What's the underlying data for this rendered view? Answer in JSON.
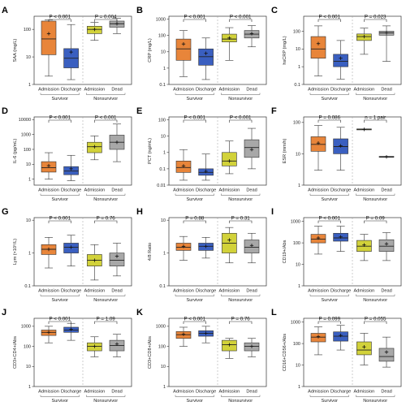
{
  "colors": {
    "admission": "#e8853a",
    "discharge": "#3a5fc0",
    "nonsurv_admission": "#d2d23a",
    "dead": "#a8a8a8"
  },
  "group_labels": [
    "Survivor",
    "Nonsurvivor"
  ],
  "category_labels": [
    "Admission",
    "Discharge",
    "Admission",
    "Dead"
  ],
  "chart_data": [
    {
      "type": "box",
      "panel": "A",
      "ylabel": "SAA (mg/L)",
      "scale": "log",
      "ylim": [
        1,
        300
      ],
      "yticks": [
        1,
        10,
        100
      ],
      "ytick_labels": [
        "1",
        "10",
        "100"
      ],
      "categories": [
        "Admission",
        "Discharge",
        "Admission",
        "Dead"
      ],
      "boxes": [
        {
          "whisker_low": 2,
          "q1": 12,
          "median": 45,
          "q3": 200,
          "whisker_high": 220,
          "mean": 70
        },
        {
          "whisker_low": 1.5,
          "q1": 4,
          "median": 9,
          "q3": 20,
          "whisker_high": 150,
          "mean": 15
        },
        {
          "whisker_low": 40,
          "q1": 70,
          "median": 100,
          "q3": 130,
          "whisker_high": 180,
          "mean": 100
        },
        {
          "whisker_low": 70,
          "q1": 120,
          "median": 160,
          "q3": 200,
          "whisker_high": 250,
          "mean": 160
        }
      ],
      "annotations": [
        "P < 0.001",
        "P = 0.004"
      ]
    },
    {
      "type": "box",
      "panel": "B",
      "ylabel": "CRP (mg/L)",
      "scale": "log",
      "ylim": [
        0.1,
        1500
      ],
      "yticks": [
        0.1,
        1,
        10,
        100,
        1000
      ],
      "ytick_labels": [
        "0.1",
        "1",
        "10",
        "100",
        "1000"
      ],
      "categories": [
        "Admission",
        "Discharge",
        "Admission",
        "Dead"
      ],
      "boxes": [
        {
          "whisker_low": 0.3,
          "q1": 3,
          "median": 15,
          "q3": 60,
          "whisker_high": 200,
          "mean": 30
        },
        {
          "whisker_low": 0.2,
          "q1": 1.5,
          "median": 5,
          "q3": 15,
          "whisker_high": 70,
          "mean": 8
        },
        {
          "whisker_low": 3,
          "q1": 40,
          "median": 60,
          "q3": 120,
          "whisker_high": 300,
          "mean": 70
        },
        {
          "whisker_low": 20,
          "q1": 70,
          "median": 120,
          "q3": 200,
          "whisker_high": 400,
          "mean": 130
        }
      ],
      "annotations": [
        "P < 0.001",
        "P < 0.001"
      ]
    },
    {
      "type": "box",
      "panel": "C",
      "ylabel": "hsCRP (mg/L)",
      "scale": "log",
      "ylim": [
        0.1,
        700
      ],
      "yticks": [
        0.1,
        1,
        10,
        100
      ],
      "ytick_labels": [
        "0.1",
        "1",
        "10",
        "100"
      ],
      "categories": [
        "Admission",
        "Discharge",
        "Admission",
        "Dead"
      ],
      "boxes": [
        {
          "whisker_low": 0.3,
          "q1": 3,
          "median": 10,
          "q3": 50,
          "whisker_high": 200,
          "mean": 20
        },
        {
          "whisker_low": 0.2,
          "q1": 1,
          "median": 2,
          "q3": 5,
          "whisker_high": 30,
          "mean": 3
        },
        {
          "whisker_low": 5,
          "q1": 30,
          "median": 50,
          "q3": 70,
          "whisker_high": 150,
          "mean": 50
        },
        {
          "whisker_low": 2,
          "q1": 60,
          "median": 80,
          "q3": 100,
          "whisker_high": 200,
          "mean": 80
        }
      ],
      "annotations": [
        "P < 0.001",
        "P = 0.023"
      ]
    },
    {
      "type": "box",
      "panel": "D",
      "ylabel": "IL-6 (pg/mL)",
      "scale": "log",
      "ylim": [
        0.4,
        15000
      ],
      "yticks": [
        1,
        10,
        100,
        1000,
        10000
      ],
      "ytick_labels": [
        "1",
        "10",
        "100",
        "1000",
        "10000"
      ],
      "categories": [
        "Admission",
        "Discharge",
        "Admission",
        "Dead"
      ],
      "boxes": [
        {
          "whisker_low": 1,
          "q1": 3,
          "median": 6,
          "q3": 15,
          "whisker_high": 60,
          "mean": 8
        },
        {
          "whisker_low": 0.8,
          "q1": 2,
          "median": 3.5,
          "q3": 7,
          "whisker_high": 40,
          "mean": 5
        },
        {
          "whisker_low": 20,
          "q1": 60,
          "median": 150,
          "q3": 300,
          "whisker_high": 800,
          "mean": 150
        },
        {
          "whisker_low": 15,
          "q1": 100,
          "median": 300,
          "q3": 900,
          "whisker_high": 5000,
          "mean": 300
        }
      ],
      "annotations": [
        "P < 0.001",
        "P < 0.001"
      ]
    },
    {
      "type": "box",
      "panel": "E",
      "ylabel": "PCT (ng/mL)",
      "scale": "log",
      "ylim": [
        0.01,
        150
      ],
      "yticks": [
        0.01,
        0.1,
        1,
        10,
        100
      ],
      "ytick_labels": [
        "0.01",
        "0.1",
        "1",
        "10",
        "100"
      ],
      "categories": [
        "Admission",
        "Discharge",
        "Admission",
        "Dead"
      ],
      "boxes": [
        {
          "whisker_low": 0.02,
          "q1": 0.06,
          "median": 0.12,
          "q3": 0.3,
          "whisker_high": 1.5,
          "mean": 0.15
        },
        {
          "whisker_low": 0.02,
          "q1": 0.04,
          "median": 0.06,
          "q3": 0.1,
          "whisker_high": 0.8,
          "mean": 0.07
        },
        {
          "whisker_low": 0.05,
          "q1": 0.15,
          "median": 0.3,
          "q3": 1,
          "whisker_high": 5,
          "mean": 0.3
        },
        {
          "whisker_low": 0.1,
          "q1": 0.5,
          "median": 2,
          "q3": 6,
          "whisker_high": 30,
          "mean": 1.5
        }
      ],
      "annotations": [
        "P < 0.001",
        "P < 0.001"
      ]
    },
    {
      "type": "box",
      "panel": "F",
      "ylabel": "ESR (mm/h)",
      "scale": "log",
      "ylim": [
        1,
        150
      ],
      "yticks": [
        1,
        10,
        100
      ],
      "ytick_labels": [
        "1",
        "10",
        "100"
      ],
      "categories": [
        "Admission",
        "Discharge",
        "Admission",
        "Dead"
      ],
      "boxes": [
        {
          "whisker_low": 3,
          "q1": 12,
          "median": 20,
          "q3": 35,
          "whisker_high": 80,
          "mean": 22
        },
        {
          "whisker_low": 3,
          "q1": 10,
          "median": 17,
          "q3": 30,
          "whisker_high": 70,
          "mean": 18
        },
        {
          "whisker_low": 60,
          "q1": 60,
          "median": 60,
          "q3": 60,
          "whisker_high": 60,
          "mean": 60
        },
        {
          "whisker_low": 8,
          "q1": 8,
          "median": 8,
          "q3": 8,
          "whisker_high": 8,
          "mean": 8
        }
      ],
      "annotations": [
        "P = 0.086",
        "n = 1 pair"
      ]
    },
    {
      "type": "box",
      "panel": "G",
      "ylabel": "Lym (×10⁹/L)",
      "scale": "log",
      "ylim": [
        0.1,
        12
      ],
      "yticks": [
        0.1,
        1,
        10
      ],
      "ytick_labels": [
        "0.1",
        "1",
        "10"
      ],
      "categories": [
        "Admission",
        "Discharge",
        "Admission",
        "Dead"
      ],
      "boxes": [
        {
          "whisker_low": 0.35,
          "q1": 0.9,
          "median": 1.3,
          "q3": 1.8,
          "whisker_high": 3,
          "mean": 1.3
        },
        {
          "whisker_low": 0.4,
          "q1": 1.0,
          "median": 1.5,
          "q3": 2.0,
          "whisker_high": 3.5,
          "mean": 1.5
        },
        {
          "whisker_low": 0.15,
          "q1": 0.4,
          "median": 0.6,
          "q3": 0.9,
          "whisker_high": 1.8,
          "mean": 0.6
        },
        {
          "whisker_low": 0.2,
          "q1": 0.4,
          "median": 0.6,
          "q3": 1.0,
          "whisker_high": 2.0,
          "mean": 0.8
        }
      ],
      "annotations": [
        "P < 0.001",
        "P = 0.76"
      ]
    },
    {
      "type": "box",
      "panel": "H",
      "ylabel": "4/8 Ratio",
      "scale": "log",
      "ylim": [
        0.1,
        12
      ],
      "yticks": [
        0.1,
        1,
        10
      ],
      "ytick_labels": [
        "0.1",
        "1",
        "10"
      ],
      "categories": [
        "Admission",
        "Discharge",
        "Admission",
        "Dead"
      ],
      "boxes": [
        {
          "whisker_low": 0.6,
          "q1": 1.2,
          "median": 1.5,
          "q3": 2.0,
          "whisker_high": 3.2,
          "mean": 1.6
        },
        {
          "whisker_low": 0.7,
          "q1": 1.2,
          "median": 1.6,
          "q3": 2.0,
          "whisker_high": 3.0,
          "mean": 1.6
        },
        {
          "whisker_low": 0.5,
          "q1": 1.0,
          "median": 2.0,
          "q3": 4.0,
          "whisker_high": 6.0,
          "mean": 2.5
        },
        {
          "whisker_low": 0.5,
          "q1": 1.0,
          "median": 1.5,
          "q3": 2.5,
          "whisker_high": 4.0,
          "mean": 1.7
        }
      ],
      "annotations": [
        "P = 0.88",
        "P = 0.31"
      ]
    },
    {
      "type": "box",
      "panel": "I",
      "ylabel": "CD19+/Abs",
      "scale": "log",
      "ylim": [
        1,
        1500
      ],
      "yticks": [
        1,
        10,
        100,
        1000
      ],
      "ytick_labels": [
        "1",
        "10",
        "100",
        "1000"
      ],
      "categories": [
        "Admission",
        "Discharge",
        "Admission",
        "Dead"
      ],
      "boxes": [
        {
          "whisker_low": 30,
          "q1": 100,
          "median": 150,
          "q3": 250,
          "whisker_high": 600,
          "mean": 170
        },
        {
          "whisker_low": 40,
          "q1": 120,
          "median": 170,
          "q3": 280,
          "whisker_high": 600,
          "mean": 190
        },
        {
          "whisker_low": 15,
          "q1": 40,
          "median": 70,
          "q3": 130,
          "whisker_high": 250,
          "mean": 80
        },
        {
          "whisker_low": 15,
          "q1": 40,
          "median": 70,
          "q3": 140,
          "whisker_high": 300,
          "mean": 90
        }
      ],
      "annotations": [
        "P < 0.001",
        "P = 0.09"
      ]
    },
    {
      "type": "box",
      "panel": "J",
      "ylabel": "CD3+CD4+/Abs",
      "scale": "log",
      "ylim": [
        1,
        2500
      ],
      "yticks": [
        1,
        10,
        100,
        1000
      ],
      "ytick_labels": [
        "1",
        "10",
        "100",
        "1000"
      ],
      "categories": [
        "Admission",
        "Discharge",
        "Admission",
        "Dead"
      ],
      "boxes": [
        {
          "whisker_low": 150,
          "q1": 350,
          "median": 500,
          "q3": 650,
          "whisker_high": 1000,
          "mean": 500
        },
        {
          "whisker_low": 200,
          "q1": 500,
          "median": 650,
          "q3": 900,
          "whisker_high": 1400,
          "mean": 700
        },
        {
          "whisker_low": 30,
          "q1": 60,
          "median": 100,
          "q3": 150,
          "whisker_high": 300,
          "mean": 100
        },
        {
          "whisker_low": 30,
          "q1": 60,
          "median": 110,
          "q3": 200,
          "whisker_high": 400,
          "mean": 130
        }
      ],
      "annotations": [
        "P < 0.001",
        "P = 1.09"
      ]
    },
    {
      "type": "box",
      "panel": "K",
      "ylabel": "CD3+CD8+/Abs",
      "scale": "log",
      "ylim": [
        1,
        2500
      ],
      "yticks": [
        1,
        10,
        100,
        1000
      ],
      "ytick_labels": [
        "1",
        "10",
        "100",
        "1000"
      ],
      "categories": [
        "Admission",
        "Discharge",
        "Admission",
        "Dead"
      ],
      "boxes": [
        {
          "whisker_low": 100,
          "q1": 250,
          "median": 380,
          "q3": 550,
          "whisker_high": 900,
          "mean": 400
        },
        {
          "whisker_low": 150,
          "q1": 320,
          "median": 450,
          "q3": 600,
          "whisker_high": 1000,
          "mean": 450
        },
        {
          "whisker_low": 25,
          "q1": 60,
          "median": 120,
          "q3": 200,
          "whisker_high": 250,
          "mean": 120
        },
        {
          "whisker_low": 30,
          "q1": 60,
          "median": 100,
          "q3": 150,
          "whisker_high": 250,
          "mean": 100
        }
      ],
      "annotations": [
        "P < 0.001",
        "P = 0.76"
      ]
    },
    {
      "type": "box",
      "panel": "L",
      "ylabel": "CD16+CD56+/Abs",
      "scale": "log",
      "ylim": [
        1,
        1500
      ],
      "yticks": [
        1,
        10,
        100,
        1000
      ],
      "ytick_labels": [
        "1",
        "10",
        "100",
        "1000"
      ],
      "categories": [
        "Admission",
        "Discharge",
        "Admission",
        "Dead"
      ],
      "boxes": [
        {
          "whisker_low": 30,
          "q1": 120,
          "median": 200,
          "q3": 300,
          "whisker_high": 600,
          "mean": 210
        },
        {
          "whisker_low": 50,
          "q1": 130,
          "median": 220,
          "q3": 350,
          "whisker_high": 700,
          "mean": 240
        },
        {
          "whisker_low": 10,
          "q1": 30,
          "median": 50,
          "q3": 120,
          "whisker_high": 300,
          "mean": 70
        },
        {
          "whisker_low": 8,
          "q1": 15,
          "median": 25,
          "q3": 60,
          "whisker_high": 200,
          "mean": 40
        }
      ],
      "annotations": [
        "P = 0.099",
        "P = 0.055"
      ]
    }
  ]
}
